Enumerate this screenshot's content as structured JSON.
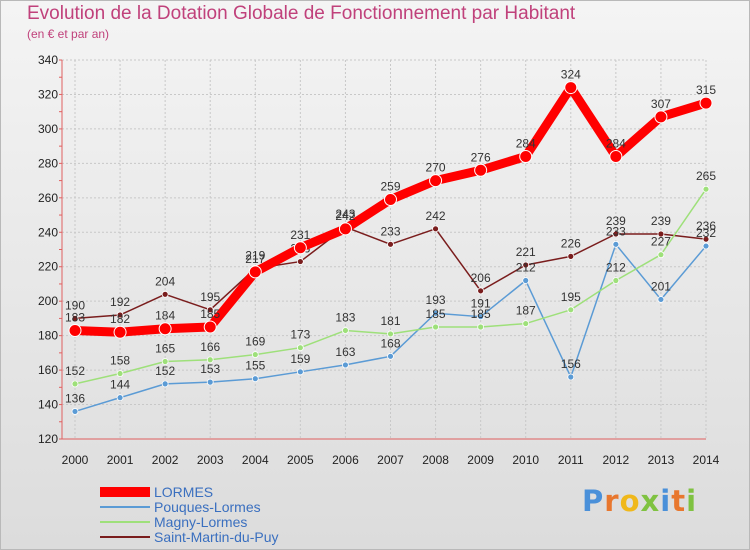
{
  "title": "Evolution de la Dotation Globale de Fonctionnement par Habitant",
  "subtitle": "(en € et par an)",
  "logo": "Proxiti",
  "chart_data": {
    "type": "line",
    "title": "Evolution de la Dotation Globale de Fonctionnement par Habitant",
    "subtitle": "(en € et par an)",
    "xlabel": "",
    "ylabel": "",
    "x": [
      "2000",
      "2001",
      "2002",
      "2003",
      "2004",
      "2005",
      "2006",
      "2007",
      "2008",
      "2009",
      "2010",
      "2011",
      "2012",
      "2013",
      "2014"
    ],
    "ylim": [
      120,
      340
    ],
    "yticks": [
      120,
      140,
      160,
      180,
      200,
      220,
      240,
      260,
      280,
      300,
      320,
      340
    ],
    "grid": true,
    "legend": "bottom-left",
    "series": [
      {
        "name": "Saint-Martin-du-Puy",
        "color": "#7a1d1d",
        "values": [
          190,
          192,
          204,
          195,
          219,
          223,
          243,
          233,
          242,
          206,
          221,
          226,
          239,
          239,
          236
        ]
      },
      {
        "name": "Pouques-Lormes",
        "color": "#5b9bd5",
        "values": [
          136,
          144,
          152,
          153,
          155,
          159,
          163,
          168,
          193,
          191,
          212,
          156,
          233,
          201,
          232
        ]
      },
      {
        "name": "Magny-Lormes",
        "color": "#9ee07a",
        "values": [
          152,
          158,
          165,
          166,
          169,
          173,
          183,
          181,
          185,
          185,
          187,
          195,
          212,
          227,
          265
        ]
      },
      {
        "name": "LORMES",
        "color": "#ff0000",
        "values": [
          183,
          182,
          184,
          185,
          217,
          231,
          242,
          259,
          270,
          276,
          284,
          324,
          284,
          307,
          315
        ]
      }
    ]
  },
  "legend": [
    {
      "name": "LORMES",
      "color": "#ff0000",
      "text_color": "#3a6fbf"
    },
    {
      "name": "Pouques-Lormes",
      "color": "#5b9bd5",
      "text_color": "#3a6fbf"
    },
    {
      "name": "Magny-Lormes",
      "color": "#9ee07a",
      "text_color": "#3a6fbf"
    },
    {
      "name": "Saint-Martin-du-Puy",
      "color": "#7a1d1d",
      "text_color": "#3a6fbf"
    }
  ]
}
